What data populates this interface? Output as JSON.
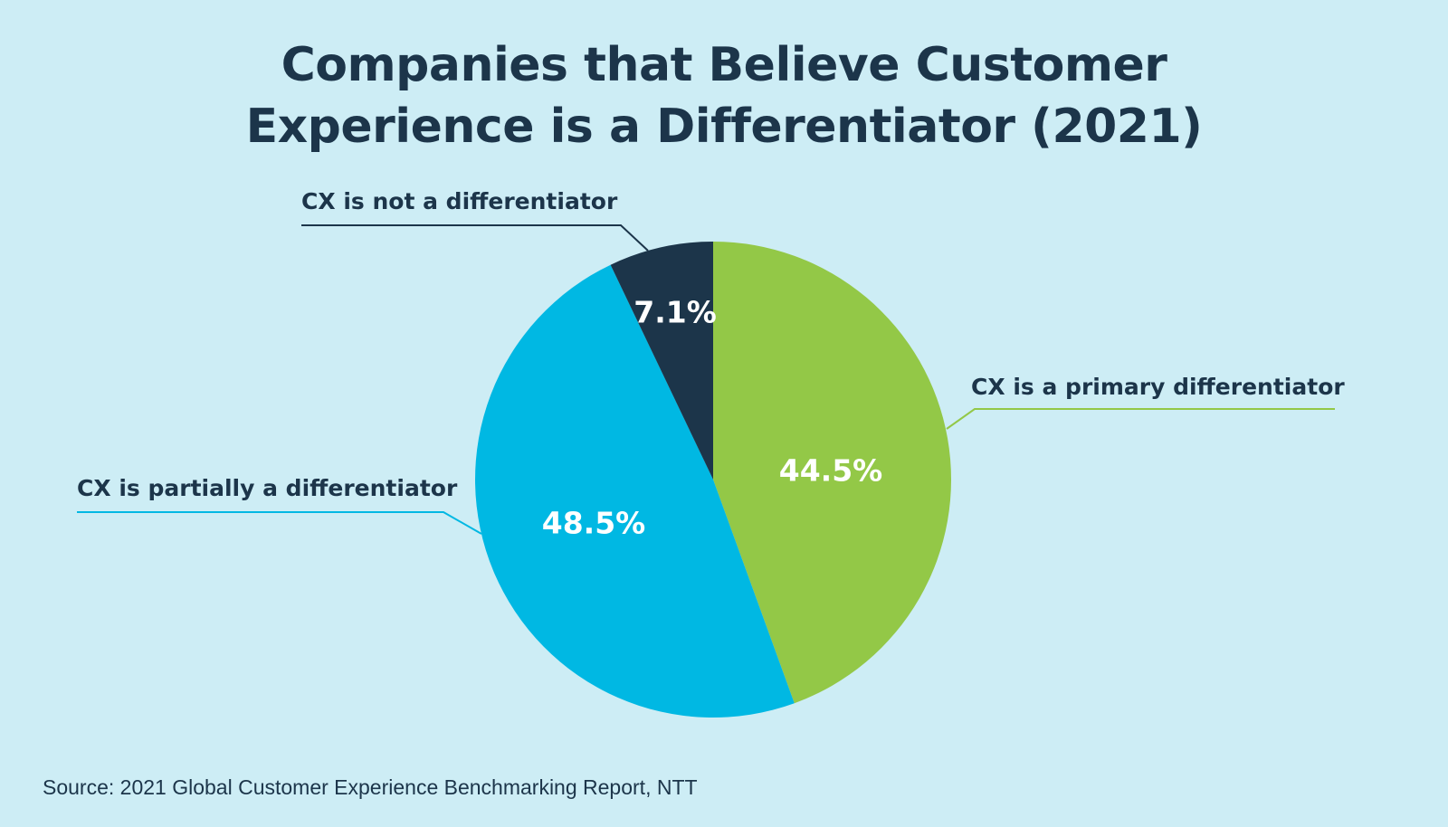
{
  "chart_data": {
    "type": "pie",
    "title": "Companies that Believe Customer Experience is a Differentiator (2021)",
    "title_lines": [
      "Companies that Believe Customer",
      "Experience is a Differentiator (2021)"
    ],
    "start": "12 o'clock",
    "direction": "clockwise",
    "slices": [
      {
        "label": "CX is a primary differentiator",
        "value": 44.5,
        "value_label": "44.5%",
        "color": "#93c847"
      },
      {
        "label": "CX is partially a differentiator",
        "value": 48.5,
        "value_label": "48.5%",
        "color": "#00b8e3"
      },
      {
        "label": "CX is not a differentiator",
        "value": 7.1,
        "value_label": "7.1%",
        "color": "#1c354a"
      }
    ],
    "legend": "callout labels with leader lines",
    "source": "Source: 2021 Global Customer Experience Benchmarking Report, NTT"
  },
  "background_color": "#cdedf5",
  "text_color": "#1c354a"
}
